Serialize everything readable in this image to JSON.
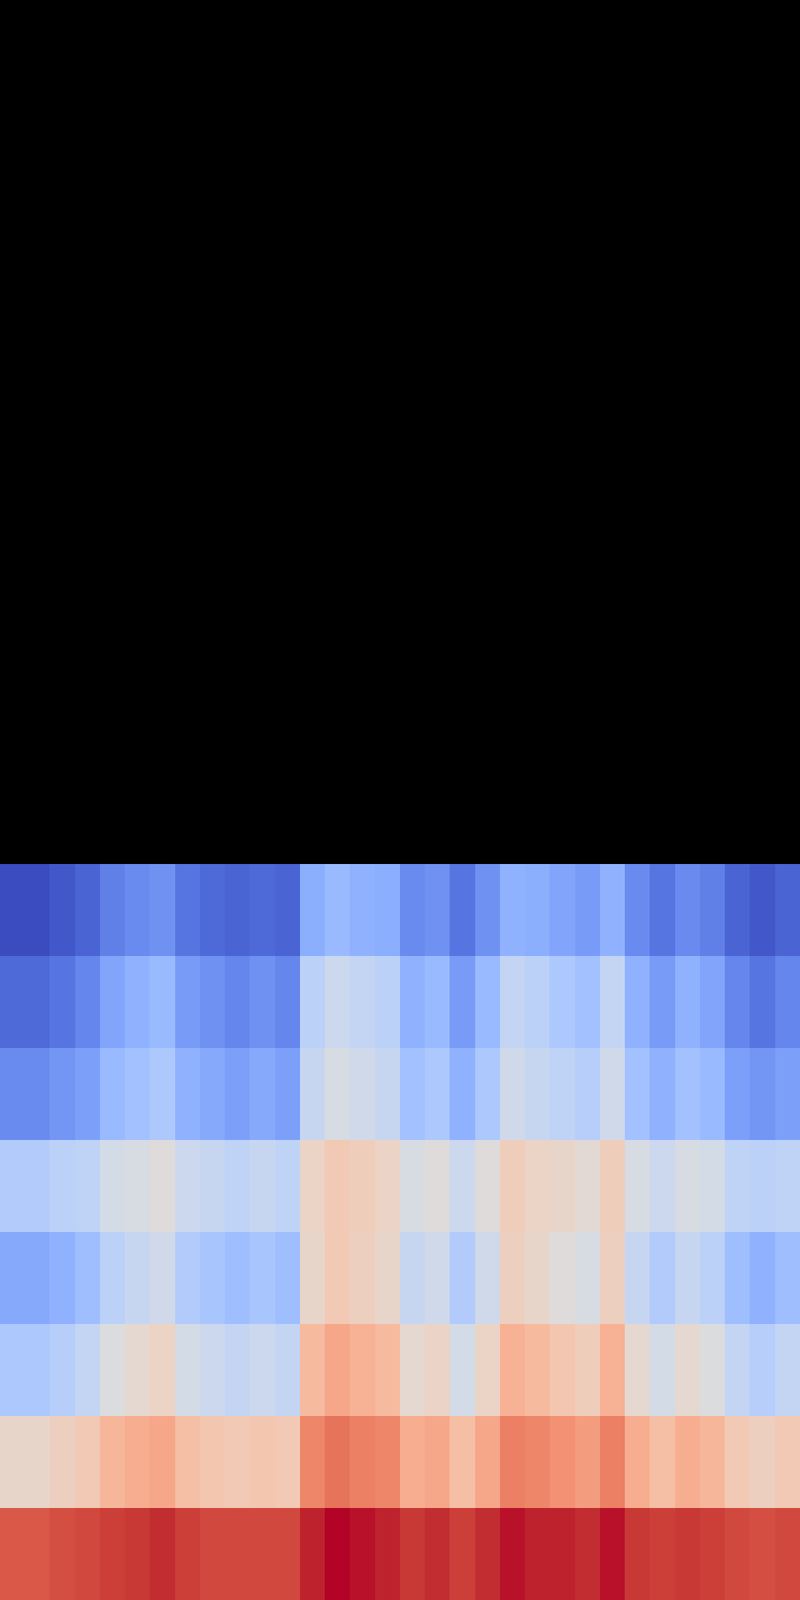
{
  "chart_data": {
    "type": "heatmap",
    "color": "coolwarm",
    "tick_labels": false,
    "grid": false,
    "cells": [
      [
        0.87,
        0.87,
        0.88,
        0.89,
        0.9,
        0.91,
        0.92,
        0.9,
        0.89,
        0.89,
        0.89,
        0.89,
        0.93,
        0.95,
        0.94,
        0.93,
        0.91,
        0.92,
        0.9,
        0.92,
        0.94,
        0.93,
        0.93,
        0.92,
        0.94,
        0.91,
        0.9,
        0.91,
        0.9,
        0.89,
        0.88,
        0.89
      ],
      [
        0.62,
        0.62,
        0.64,
        0.66,
        0.71,
        0.73,
        0.74,
        0.69,
        0.67,
        0.66,
        0.67,
        0.66,
        0.8,
        0.83,
        0.81,
        0.8,
        0.73,
        0.74,
        0.69,
        0.74,
        0.81,
        0.8,
        0.78,
        0.76,
        0.81,
        0.73,
        0.69,
        0.73,
        0.71,
        0.66,
        0.64,
        0.66
      ],
      [
        0.47,
        0.47,
        0.49,
        0.52,
        0.58,
        0.61,
        0.63,
        0.56,
        0.54,
        0.52,
        0.54,
        0.52,
        0.7,
        0.74,
        0.72,
        0.7,
        0.61,
        0.63,
        0.56,
        0.63,
        0.72,
        0.7,
        0.67,
        0.65,
        0.72,
        0.61,
        0.56,
        0.61,
        0.58,
        0.52,
        0.49,
        0.52
      ],
      [
        0.39,
        0.39,
        0.41,
        0.44,
        0.5,
        0.53,
        0.55,
        0.48,
        0.46,
        0.44,
        0.46,
        0.44,
        0.62,
        0.66,
        0.64,
        0.62,
        0.53,
        0.55,
        0.48,
        0.55,
        0.64,
        0.62,
        0.59,
        0.57,
        0.64,
        0.53,
        0.48,
        0.53,
        0.5,
        0.44,
        0.41,
        0.44
      ],
      [
        0.48,
        0.48,
        0.5,
        0.51,
        0.56,
        0.57,
        0.59,
        0.54,
        0.53,
        0.51,
        0.53,
        0.51,
        0.63,
        0.66,
        0.65,
        0.63,
        0.57,
        0.59,
        0.54,
        0.59,
        0.65,
        0.63,
        0.62,
        0.6,
        0.65,
        0.57,
        0.54,
        0.57,
        0.56,
        0.51,
        0.5,
        0.51
      ],
      [
        0.33,
        0.33,
        0.35,
        0.37,
        0.43,
        0.45,
        0.47,
        0.41,
        0.39,
        0.37,
        0.39,
        0.37,
        0.53,
        0.57,
        0.55,
        0.53,
        0.45,
        0.47,
        0.41,
        0.47,
        0.55,
        0.53,
        0.51,
        0.49,
        0.55,
        0.45,
        0.41,
        0.45,
        0.43,
        0.37,
        0.35,
        0.37
      ],
      [
        0.27,
        0.27,
        0.29,
        0.32,
        0.38,
        0.41,
        0.43,
        0.36,
        0.34,
        0.32,
        0.34,
        0.32,
        0.5,
        0.54,
        0.52,
        0.5,
        0.41,
        0.43,
        0.36,
        0.43,
        0.52,
        0.5,
        0.47,
        0.45,
        0.52,
        0.41,
        0.36,
        0.41,
        0.38,
        0.32,
        0.29,
        0.32
      ],
      [
        0.22,
        0.22,
        0.24,
        0.26,
        0.31,
        0.33,
        0.34,
        0.29,
        0.27,
        0.26,
        0.27,
        0.26,
        0.4,
        0.43,
        0.41,
        0.4,
        0.33,
        0.34,
        0.29,
        0.34,
        0.41,
        0.4,
        0.38,
        0.36,
        0.41,
        0.33,
        0.29,
        0.33,
        0.31,
        0.26,
        0.24,
        0.26
      ]
    ]
  }
}
